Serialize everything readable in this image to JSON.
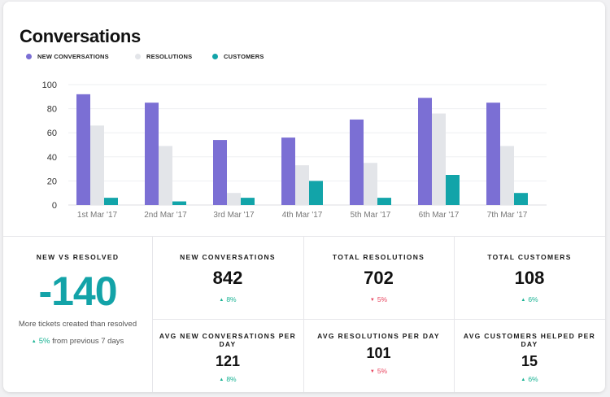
{
  "title": "Conversations",
  "legend": [
    {
      "label": "NEW CONVERSATIONS",
      "color": "#7b6fd4"
    },
    {
      "label": "RESOLUTIONS",
      "color": "#e3e5e9"
    },
    {
      "label": "CUSTOMERS",
      "color": "#12a4a9"
    }
  ],
  "chart_data": {
    "type": "bar",
    "categories": [
      "1st Mar '17",
      "2nd Mar '17",
      "3rd Mar '17",
      "4th Mar '17",
      "5th Mar '17",
      "6th Mar '17",
      "7th Mar '17"
    ],
    "series": [
      {
        "name": "NEW CONVERSATIONS",
        "values": [
          92,
          85,
          54,
          56,
          71,
          89,
          85
        ],
        "color": "#7b6fd4"
      },
      {
        "name": "RESOLUTIONS",
        "values": [
          66,
          49,
          10,
          33,
          35,
          76,
          49
        ],
        "color": "#e3e5e9"
      },
      {
        "name": "CUSTOMERS",
        "values": [
          6,
          3,
          6,
          20,
          6,
          25,
          10
        ],
        "color": "#12a4a9"
      }
    ],
    "y_ticks": [
      0,
      20,
      40,
      60,
      80,
      100
    ],
    "ylim": [
      0,
      100
    ],
    "grid": true,
    "legend_position": "top-left"
  },
  "stats": {
    "new_vs_resolved": {
      "heading": "NEW VS RESOLVED",
      "value": "-140",
      "note": "More tickets created than resolved",
      "delta": "5%",
      "delta_suffix": "from previous 7 days",
      "direction": "up"
    },
    "totals": [
      {
        "heading": "NEW CONVERSATIONS",
        "value": "842",
        "delta": "8%",
        "direction": "up"
      },
      {
        "heading": "TOTAL RESOLUTIONS",
        "value": "702",
        "delta": "5%",
        "direction": "down"
      },
      {
        "heading": "TOTAL CUSTOMERS",
        "value": "108",
        "delta": "6%",
        "direction": "up"
      }
    ],
    "averages": [
      {
        "heading": "AVG NEW CONVERSATIONS PER DAY",
        "value": "121",
        "delta": "8%",
        "direction": "up"
      },
      {
        "heading": "AVG RESOLUTIONS PER DAY",
        "value": "101",
        "delta": "5%",
        "direction": "down"
      },
      {
        "heading": "AVG CUSTOMERS HELPED PER DAY",
        "value": "15",
        "delta": "6%",
        "direction": "up"
      }
    ]
  }
}
